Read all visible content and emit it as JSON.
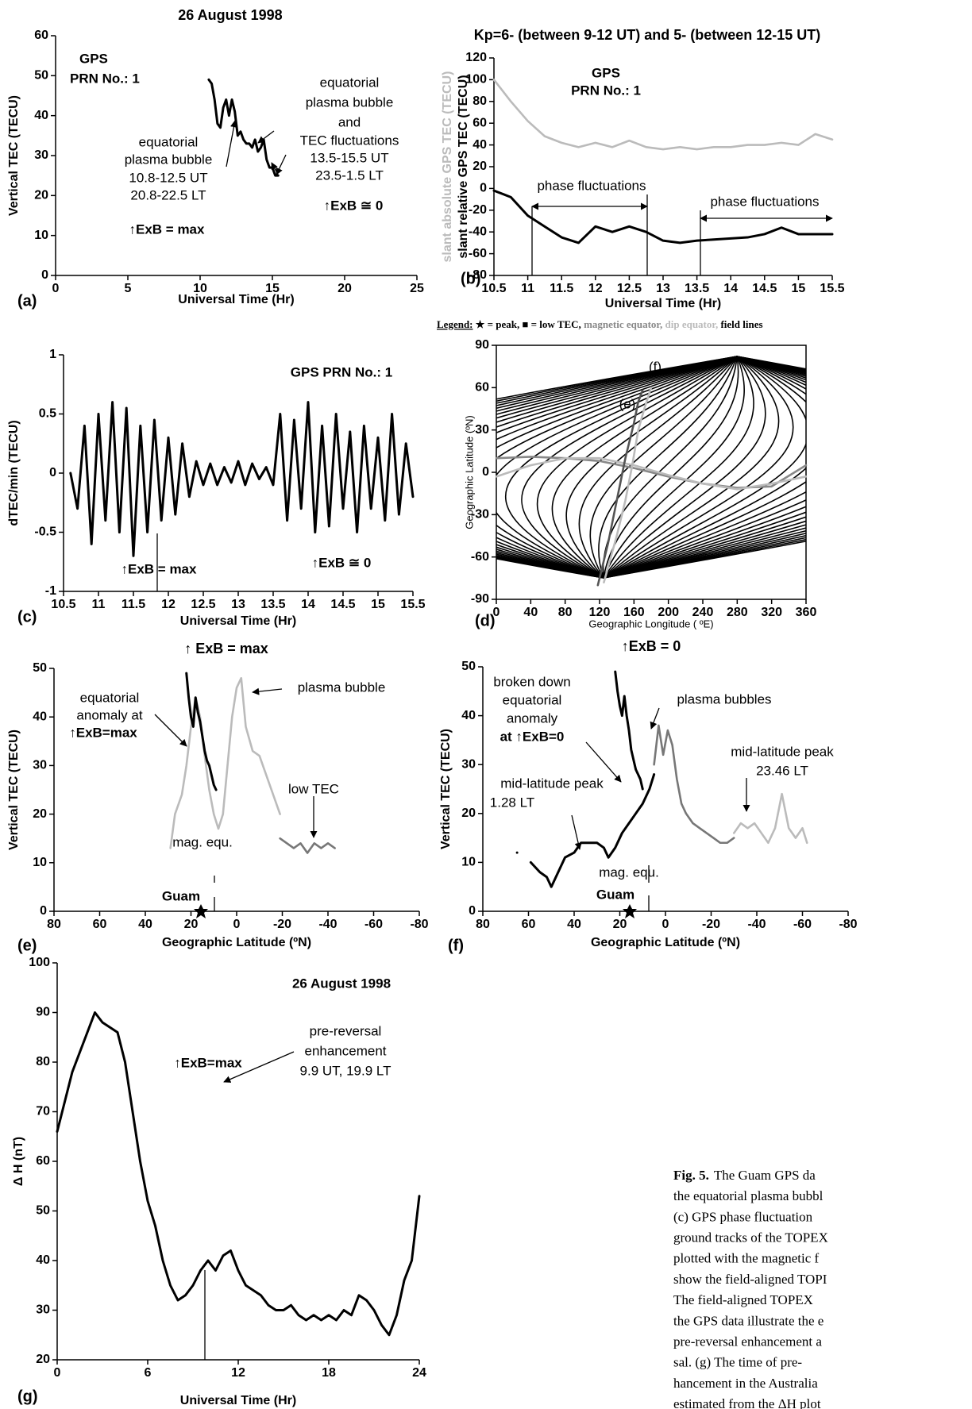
{
  "chart_data": [
    {
      "type": "line",
      "title": "26 August 1998",
      "panel_label": "(a)",
      "xlabel": "Universal Time (Hr)",
      "ylabel": "Vertical TEC (TECU)",
      "xlim": [
        0,
        25
      ],
      "xticks": [
        0,
        5,
        10,
        15,
        20,
        25
      ],
      "ylim": [
        0,
        60
      ],
      "yticks": [
        0,
        10,
        20,
        30,
        40,
        50,
        60
      ],
      "series": [
        {
          "color": "#000000",
          "x": [
            10.6,
            10.8,
            11.0,
            11.2,
            11.4,
            11.6,
            11.8,
            12.0,
            12.2,
            12.4,
            12.6,
            12.8,
            13.0,
            13.2,
            13.4,
            13.6,
            13.8,
            14.0,
            14.2,
            14.4,
            14.6,
            14.8,
            15.0,
            15.2,
            15.4
          ],
          "values": [
            49,
            48,
            44,
            38,
            37,
            42,
            44,
            40,
            44,
            41,
            35,
            36,
            34,
            33,
            33,
            32,
            34,
            31,
            32,
            34,
            29,
            27,
            27,
            25,
            25
          ]
        }
      ],
      "annotations": [
        "GPS",
        "PRN No.: 1",
        "equatorial",
        "plasma bubble",
        "and",
        "TEC fluctuations",
        "13.5-15.5 UT",
        "23.5-1.5 LT",
        "equatorial",
        "plasma bubble",
        "10.8-12.5 UT",
        "20.8-22.5 LT",
        "↑ExB = max",
        "↑ExB ≅ 0"
      ]
    },
    {
      "type": "line",
      "title": "Kp=6- (between 9-12 UT) and 5- (between 12-15 UT)",
      "panel_label": "(b)",
      "xlabel": "Universal Time (Hr)",
      "ylabel": "slant relative GPS TEC (TECU)",
      "ylabel_alt": {
        "text": "slant absolute GPS TEC (TECU)",
        "color": "#bbbbbb"
      },
      "xlim": [
        10.5,
        15.5
      ],
      "xticks": [
        10.5,
        11,
        11.5,
        12,
        12.5,
        13,
        13.5,
        14,
        14.5,
        15,
        15.5
      ],
      "ylim": [
        -80,
        120
      ],
      "yticks": [
        -80,
        -60,
        -40,
        -20,
        0,
        20,
        40,
        60,
        80,
        100,
        120
      ],
      "series": [
        {
          "color": "#bbbbbb",
          "x": [
            10.5,
            10.75,
            11,
            11.25,
            11.5,
            11.75,
            12,
            12.25,
            12.5,
            12.75,
            13,
            13.25,
            13.5,
            13.75,
            14,
            14.25,
            14.5,
            14.75,
            15,
            15.25,
            15.5
          ],
          "values": [
            100,
            80,
            62,
            48,
            42,
            38,
            42,
            38,
            44,
            38,
            36,
            38,
            36,
            38,
            38,
            40,
            40,
            42,
            40,
            50,
            45
          ]
        },
        {
          "color": "#000000",
          "x": [
            10.5,
            10.75,
            11,
            11.25,
            11.5,
            11.75,
            12,
            12.25,
            12.5,
            12.75,
            13,
            13.25,
            13.5,
            13.75,
            14,
            14.25,
            14.5,
            14.75,
            15,
            15.25,
            15.5
          ],
          "values": [
            -2,
            -8,
            -25,
            -35,
            -45,
            -50,
            -35,
            -40,
            -35,
            -40,
            -48,
            -50,
            -48,
            -47,
            -46,
            -45,
            -42,
            -36,
            -42,
            -42,
            -42
          ]
        }
      ],
      "annotations": [
        "GPS",
        "PRN No.: 1",
        "phase fluctuations",
        "phase fluctuations"
      ]
    },
    {
      "type": "line",
      "panel_label": "(c)",
      "xlabel": "Universal Time (Hr)",
      "ylabel": "dTEC/min (TECU)",
      "xlim": [
        10.5,
        15.5
      ],
      "xticks": [
        10.5,
        11,
        11.5,
        12,
        12.5,
        13,
        13.5,
        14,
        14.5,
        15,
        15.5
      ],
      "ylim": [
        -1,
        1
      ],
      "yticks": [
        -1,
        -0.5,
        0,
        0.5,
        1
      ],
      "series": [
        {
          "color": "#000000",
          "x": [
            10.6,
            10.7,
            10.8,
            10.9,
            11.0,
            11.1,
            11.2,
            11.3,
            11.4,
            11.5,
            11.6,
            11.7,
            11.8,
            11.9,
            12.0,
            12.1,
            12.2,
            12.3,
            12.4,
            12.5,
            12.6,
            12.7,
            12.8,
            12.9,
            13.0,
            13.1,
            13.2,
            13.3,
            13.4,
            13.5,
            13.6,
            13.7,
            13.8,
            13.9,
            14.0,
            14.1,
            14.2,
            14.3,
            14.4,
            14.5,
            14.6,
            14.7,
            14.8,
            14.9,
            15.0,
            15.1,
            15.2,
            15.3,
            15.4,
            15.5
          ],
          "values": [
            0,
            -0.3,
            0.4,
            -0.6,
            0.5,
            -0.4,
            0.6,
            -0.5,
            0.55,
            -0.7,
            0.4,
            -0.5,
            0.45,
            -0.4,
            0.3,
            -0.35,
            0.25,
            -0.2,
            0.1,
            -0.1,
            0.08,
            -0.1,
            0.05,
            -0.08,
            0.1,
            -0.1,
            0.08,
            -0.05,
            0.05,
            -0.1,
            0.5,
            -0.4,
            0.45,
            -0.3,
            0.6,
            -0.5,
            0.4,
            -0.45,
            0.5,
            -0.3,
            0.35,
            -0.5,
            0.4,
            -0.3,
            0.3,
            -0.4,
            0.5,
            -0.35,
            0.25,
            -0.2
          ]
        }
      ],
      "annotations": [
        "GPS PRN No.: 1",
        "↑ExB = max",
        "↑ExB ≅ 0"
      ]
    },
    {
      "type": "map",
      "panel_label": "(d)",
      "xlabel": "Geographic Longitude ( ºE)",
      "ylabel": "Geographic Latitude (ºN)",
      "legend": [
        {
          "text": "Legend:",
          "color": "#000000"
        },
        {
          "text": " ★ = peak,",
          "color": "#000000"
        },
        {
          "text": " ■ = low TEC,",
          "color": "#000000"
        },
        {
          "text": " magnetic equator,",
          "color": "#888888"
        },
        {
          "text": " dip equator,",
          "color": "#bbbbbb"
        },
        {
          "text": " field lines",
          "color": "#000000"
        }
      ],
      "xlim": [
        0,
        360
      ],
      "xticks": [
        0,
        40,
        80,
        120,
        160,
        200,
        240,
        280,
        320,
        360
      ],
      "ylim": [
        -90,
        90
      ],
      "yticks": [
        -90,
        -60,
        -30,
        0,
        30,
        60,
        90
      ],
      "series": [
        {
          "name": "magnetic equator",
          "color": "#888888",
          "x": [
            0,
            40,
            80,
            120,
            160,
            200,
            240,
            280,
            320,
            360
          ],
          "values": [
            10,
            11,
            10,
            8,
            3,
            -3,
            -8,
            -11,
            -10,
            5
          ]
        },
        {
          "name": "dip equator",
          "color": "#bbbbbb",
          "x": [
            0,
            40,
            80,
            120,
            160,
            200,
            240,
            280,
            320,
            360
          ],
          "values": [
            -3,
            5,
            10,
            10,
            5,
            -2,
            -8,
            -12,
            -8,
            -3
          ]
        },
        {
          "color": "#555555",
          "x": [
            118,
            130,
            140,
            150,
            160,
            165,
            170
          ],
          "values": [
            -80,
            -50,
            -20,
            10,
            35,
            50,
            58
          ]
        },
        {
          "color": "#bbbbbb",
          "x": [
            125,
            140,
            150,
            158,
            165,
            172,
            180
          ],
          "values": [
            -78,
            -45,
            -20,
            5,
            30,
            45,
            60
          ]
        }
      ],
      "annotations": [
        "(e)",
        "(f)"
      ]
    },
    {
      "type": "line",
      "title": "↑ ExB = max",
      "panel_label": "(e)",
      "xlabel": "Geographic Latitude (ºN)",
      "ylabel": "Vertical TEC (TECU)",
      "xlim": [
        80,
        -80
      ],
      "xticks": [
        80,
        60,
        40,
        20,
        0,
        -20,
        -40,
        -60,
        -80
      ],
      "ylim": [
        0,
        50
      ],
      "yticks": [
        0,
        10,
        20,
        30,
        40,
        50
      ],
      "series": [
        {
          "color": "#bbbbbb",
          "x": [
            29,
            27,
            24,
            22,
            20,
            18,
            16,
            14,
            12,
            10,
            8,
            6,
            4,
            2,
            0,
            -2,
            -4,
            -7,
            -10,
            -13,
            -16,
            -19
          ],
          "values": [
            13,
            20,
            24,
            30,
            38,
            44,
            40,
            32,
            25,
            20,
            17,
            20,
            30,
            40,
            46,
            48,
            38,
            33,
            32,
            28,
            24,
            20
          ]
        },
        {
          "color": "#000000",
          "x": [
            22,
            21,
            20,
            19,
            18,
            17,
            16,
            15,
            14,
            13,
            12,
            11,
            10,
            9
          ],
          "values": [
            49,
            44,
            40,
            38,
            44,
            41,
            39,
            36,
            33,
            31,
            30,
            28,
            26,
            25
          ]
        },
        {
          "color": "#777777",
          "x": [
            -19,
            -22,
            -25,
            -28,
            -31,
            -34,
            -37,
            -40,
            -43
          ],
          "values": [
            15,
            14,
            13,
            14,
            12,
            14,
            13,
            14,
            13
          ]
        }
      ],
      "annotations": [
        "equatorial",
        "anomaly at",
        "↑ExB=max",
        "plasma bubble",
        "low TEC",
        "mag. equ.",
        "Guam"
      ]
    },
    {
      "type": "line",
      "title": "↑ExB = 0",
      "panel_label": "(f)",
      "xlabel": "Geographic Latitude (ºN)",
      "ylabel": "Vertical TEC (TECU)",
      "xlim": [
        80,
        -80
      ],
      "xticks": [
        80,
        60,
        40,
        20,
        0,
        -20,
        -40,
        -60,
        -80
      ],
      "ylim": [
        0,
        50
      ],
      "yticks": [
        0,
        10,
        20,
        30,
        40,
        50
      ],
      "series": [
        {
          "color": "#000000",
          "x": [
            65,
            62,
            59,
            55,
            52,
            50,
            47,
            44,
            40,
            37,
            34,
            30,
            27,
            25,
            22,
            19,
            16,
            13,
            10,
            7,
            5
          ],
          "values": [
            12,
            null,
            10,
            8,
            7,
            5,
            8,
            11,
            12,
            14,
            14,
            14,
            13,
            11,
            13,
            16,
            18,
            20,
            22,
            25,
            28
          ]
        },
        {
          "color": "#777777",
          "x": [
            5,
            3,
            1,
            -1,
            -3,
            -5,
            -7,
            -9,
            -12,
            -15,
            -18,
            -21,
            -24,
            -27,
            -30
          ],
          "values": [
            30,
            38,
            32,
            37,
            34,
            27,
            22,
            20,
            18,
            17,
            16,
            15,
            14,
            14,
            15
          ]
        },
        {
          "color": "#bbbbbb",
          "x": [
            -30,
            -33,
            -36,
            -39,
            -42,
            -45,
            -48,
            -51,
            -54,
            -57,
            -60,
            -62
          ],
          "values": [
            16,
            18,
            17,
            18,
            16,
            14,
            17,
            24,
            17,
            15,
            17,
            14
          ]
        },
        {
          "color": "#000000",
          "x": [
            22,
            21,
            20,
            19,
            18,
            17,
            16,
            15,
            14,
            13,
            12,
            11,
            10
          ],
          "values": [
            49,
            45,
            42,
            40,
            44,
            40,
            37,
            33,
            31,
            29,
            28,
            27,
            25
          ]
        }
      ],
      "annotations": [
        "broken down",
        "equatorial",
        "anomaly",
        "at ↑ExB=0",
        "plasma bubbles",
        "mid-latitude peak",
        "1.28 LT",
        "mid-latitude peak",
        "23.46 LT",
        "mag. equ.",
        "Guam"
      ]
    },
    {
      "type": "line",
      "panel_label": "(g)",
      "xlabel": "Universal Time (Hr)",
      "ylabel": "Δ H (nT)",
      "xlim": [
        0,
        24
      ],
      "xticks": [
        0,
        6,
        12,
        18,
        24
      ],
      "ylim": [
        20,
        100
      ],
      "yticks": [
        20,
        30,
        40,
        50,
        60,
        70,
        80,
        90,
        100
      ],
      "series": [
        {
          "color": "#000000",
          "x": [
            0,
            0.5,
            1,
            1.5,
            2,
            2.5,
            3,
            3.5,
            4,
            4.5,
            5,
            5.5,
            6,
            6.5,
            7,
            7.5,
            8,
            8.5,
            9,
            9.5,
            10,
            10.5,
            11,
            11.5,
            12,
            12.5,
            13,
            13.5,
            14,
            14.5,
            15,
            15.5,
            16,
            16.5,
            17,
            17.5,
            18,
            18.5,
            19,
            19.5,
            20,
            20.5,
            21,
            21.5,
            22,
            22.5,
            23,
            23.5,
            24
          ],
          "values": [
            66,
            72,
            78,
            82,
            86,
            90,
            88,
            87,
            86,
            80,
            70,
            60,
            52,
            47,
            40,
            35,
            32,
            33,
            35,
            38,
            40,
            38,
            41,
            42,
            38,
            35,
            34,
            33,
            31,
            30,
            30,
            31,
            29,
            28,
            29,
            28,
            29,
            28,
            30,
            29,
            33,
            32,
            30,
            27,
            25,
            29,
            36,
            40,
            53
          ]
        }
      ],
      "annotations": [
        "26 August 1998",
        "↑ExB=max",
        "pre-reversal",
        "enhancement",
        "9.9 UT, 19.9 LT"
      ]
    }
  ],
  "caption": {
    "label": "Fig. 5.",
    "lines": [
      "The Guam GPS da",
      "the equatorial plasma bubbl",
      "(c) GPS phase fluctuation",
      "ground tracks of the TOPEX",
      "plotted with the magnetic f",
      "show the field-aligned TOPI",
      "The field-aligned TOPEX",
      "the GPS data illustrate the e",
      "pre-reversal enhancement a",
      "sal. (g) The time of pre-",
      "hancement in the Australia",
      "estimated from the ΔH plot"
    ]
  }
}
